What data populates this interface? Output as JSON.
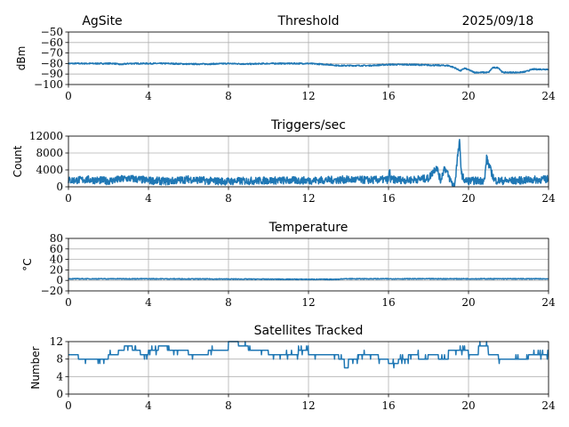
{
  "header": {
    "site": "AgSite",
    "date": "2025/09/18"
  },
  "chart_data": [
    {
      "type": "line",
      "title": "Threshold",
      "ylabel": "dBm",
      "xlim": [
        0,
        24
      ],
      "ylim": [
        -100,
        -50
      ],
      "xticks": [
        0,
        4,
        8,
        12,
        16,
        20,
        24
      ],
      "yticks": [
        -100,
        -90,
        -80,
        -70,
        -60,
        -50
      ],
      "grid": true,
      "color": "#1f77b4",
      "noise": 0.6,
      "points": [
        [
          0,
          -80
        ],
        [
          1,
          -80
        ],
        [
          2,
          -80
        ],
        [
          2.3,
          -80
        ],
        [
          2.6,
          -81
        ],
        [
          3,
          -80
        ],
        [
          4,
          -80
        ],
        [
          5,
          -80
        ],
        [
          6,
          -80.5
        ],
        [
          7,
          -80.5
        ],
        [
          8,
          -80
        ],
        [
          9,
          -80.5
        ],
        [
          10,
          -80
        ],
        [
          11,
          -80
        ],
        [
          12,
          -80
        ],
        [
          12.5,
          -80.5
        ],
        [
          13,
          -81
        ],
        [
          13.5,
          -82
        ],
        [
          14,
          -82
        ],
        [
          15,
          -82
        ],
        [
          15.5,
          -81.5
        ],
        [
          16,
          -81
        ],
        [
          17,
          -81
        ],
        [
          18,
          -81.5
        ],
        [
          19,
          -82
        ],
        [
          19.3,
          -84
        ],
        [
          19.6,
          -87
        ],
        [
          19.8,
          -84.5
        ],
        [
          20,
          -86
        ],
        [
          20.3,
          -88.5
        ],
        [
          21,
          -88.5
        ],
        [
          21.2,
          -84
        ],
        [
          21.5,
          -84
        ],
        [
          21.7,
          -88.5
        ],
        [
          22.5,
          -88.5
        ],
        [
          22.8,
          -88
        ],
        [
          23.2,
          -85.5
        ],
        [
          24,
          -85.5
        ]
      ]
    },
    {
      "type": "line",
      "title": "Triggers/sec",
      "ylabel": "Count",
      "xlim": [
        0,
        24
      ],
      "ylim": [
        0,
        12000
      ],
      "xticks": [
        0,
        4,
        8,
        12,
        16,
        20,
        24
      ],
      "yticks": [
        0,
        4000,
        8000,
        12000
      ],
      "grid": true,
      "color": "#1f77b4",
      "noise": 900,
      "points": [
        [
          0,
          1500
        ],
        [
          1,
          1700
        ],
        [
          2,
          1400
        ],
        [
          3,
          2000
        ],
        [
          4,
          1500
        ],
        [
          5,
          1300
        ],
        [
          6,
          1800
        ],
        [
          7,
          1400
        ],
        [
          8,
          1300
        ],
        [
          9,
          1400
        ],
        [
          10,
          1500
        ],
        [
          11,
          1500
        ],
        [
          12,
          1500
        ],
        [
          13,
          1600
        ],
        [
          14,
          1700
        ],
        [
          15,
          1600
        ],
        [
          16,
          1700
        ],
        [
          16.05,
          4200
        ],
        [
          16.1,
          1700
        ],
        [
          17,
          1600
        ],
        [
          18,
          2000
        ],
        [
          18.4,
          4800
        ],
        [
          18.6,
          1500
        ],
        [
          18.8,
          4600
        ],
        [
          19.1,
          1500
        ],
        [
          19.3,
          0
        ],
        [
          19.45,
          7000
        ],
        [
          19.55,
          10500
        ],
        [
          19.65,
          3000
        ],
        [
          19.8,
          1500
        ],
        [
          20,
          1400
        ],
        [
          20.8,
          1500
        ],
        [
          20.9,
          6800
        ],
        [
          21.1,
          4000
        ],
        [
          21.3,
          1500
        ],
        [
          22,
          1400
        ],
        [
          23,
          1600
        ],
        [
          24,
          1800
        ]
      ]
    },
    {
      "type": "line",
      "title": "Temperature",
      "ylabel": "°C",
      "xlim": [
        0,
        24
      ],
      "ylim": [
        -20,
        80
      ],
      "xticks": [
        0,
        4,
        8,
        12,
        16,
        20,
        24
      ],
      "yticks": [
        -20,
        0,
        20,
        40,
        60,
        80
      ],
      "grid": true,
      "color": "#1f77b4",
      "noise": 0.8,
      "points": [
        [
          0,
          3
        ],
        [
          4,
          3
        ],
        [
          8,
          2.5
        ],
        [
          12,
          2
        ],
        [
          13.6,
          2
        ],
        [
          13.6,
          3
        ],
        [
          24,
          3
        ]
      ]
    },
    {
      "type": "line",
      "title": "Satellites Tracked",
      "ylabel": "Number",
      "xlim": [
        0,
        24
      ],
      "ylim": [
        0,
        12
      ],
      "xticks": [
        0,
        4,
        8,
        12,
        16,
        20,
        24
      ],
      "yticks": [
        0,
        4,
        8,
        12
      ],
      "grid": true,
      "color": "#1f77b4",
      "noise": 1,
      "step": true,
      "points": [
        [
          0,
          9
        ],
        [
          0.5,
          8
        ],
        [
          1,
          8
        ],
        [
          1.5,
          8
        ],
        [
          2,
          9
        ],
        [
          2.5,
          10
        ],
        [
          2.8,
          11
        ],
        [
          3.2,
          10
        ],
        [
          3.6,
          9
        ],
        [
          4,
          10
        ],
        [
          4.5,
          11
        ],
        [
          5,
          10
        ],
        [
          5.5,
          10
        ],
        [
          6,
          9
        ],
        [
          6.5,
          9
        ],
        [
          7,
          10
        ],
        [
          7.5,
          10
        ],
        [
          8,
          12
        ],
        [
          8.5,
          11
        ],
        [
          9,
          10
        ],
        [
          9.5,
          10
        ],
        [
          10,
          9
        ],
        [
          10.5,
          9
        ],
        [
          11,
          9
        ],
        [
          11.5,
          10
        ],
        [
          12,
          9
        ],
        [
          13,
          9
        ],
        [
          13.5,
          8
        ],
        [
          13.8,
          6
        ],
        [
          14,
          8
        ],
        [
          14.5,
          9
        ],
        [
          15,
          9
        ],
        [
          15.5,
          8
        ],
        [
          16,
          7
        ],
        [
          16.5,
          8
        ],
        [
          17,
          9
        ],
        [
          17.5,
          8
        ],
        [
          18,
          9
        ],
        [
          18.5,
          8
        ],
        [
          19,
          10
        ],
        [
          19.5,
          10
        ],
        [
          20,
          9
        ],
        [
          20.5,
          11
        ],
        [
          21,
          9
        ],
        [
          21.5,
          8
        ],
        [
          22,
          8
        ],
        [
          22.5,
          8
        ],
        [
          23,
          9
        ],
        [
          23.5,
          9
        ],
        [
          24,
          9
        ]
      ]
    }
  ]
}
